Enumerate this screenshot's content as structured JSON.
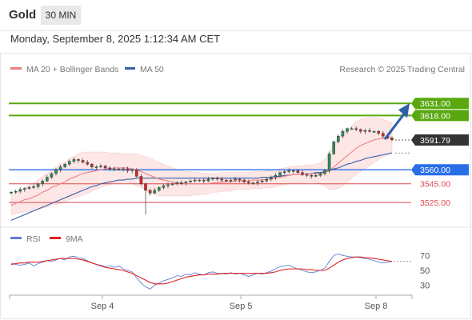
{
  "header": {
    "instrument": "Gold",
    "timeframe": "30 MIN",
    "datetime": "Monday, September 8, 2025 1:12:34 AM CET"
  },
  "legend": {
    "ma20": "MA 20 + Bollinger Bands",
    "ma50": "MA 50",
    "credit": "Research © 2025 Trading Central",
    "rsi": "RSI",
    "rsi_ma": "9MA"
  },
  "colors": {
    "ma20": "#f08080",
    "band": "#fbd9d9",
    "ma50": "#3a5fa8",
    "up": "#2e8b57",
    "down": "#cc2b2b",
    "target": "#5aa810",
    "pivot": "#2a6fe8",
    "support": "#e04a4a",
    "current": "#333333",
    "arrow": "#2d5fa8",
    "rsi": "#5b7fd6",
    "rsi_ma": "#e02020"
  },
  "chart_data": [
    {
      "type": "line",
      "subtype": "candlestick",
      "title": "",
      "x_ticks": [
        "Sep 4",
        "Sep 5",
        "Sep 8"
      ],
      "ylim": [
        3502,
        3656
      ],
      "current_price": 3591.79,
      "levels": [
        {
          "value": 3631.0,
          "label": "3631.00",
          "kind": "target"
        },
        {
          "value": 3618.0,
          "label": "3618.00",
          "kind": "target"
        },
        {
          "value": 3591.79,
          "label": "3591.79",
          "kind": "current"
        },
        {
          "value": 3560.0,
          "label": "3560.00",
          "kind": "pivot"
        },
        {
          "value": 3545.0,
          "label": "3545.00",
          "kind": "support"
        },
        {
          "value": 3525.0,
          "label": "3525.00",
          "kind": "support"
        }
      ],
      "closes": [
        3536,
        3537,
        3539,
        3540,
        3541,
        3542,
        3545,
        3548,
        3552,
        3556,
        3560,
        3563,
        3566,
        3569,
        3571,
        3570,
        3568,
        3566,
        3563,
        3563,
        3564,
        3562,
        3561,
        3561,
        3560,
        3561,
        3559,
        3560,
        3553,
        3545,
        3538,
        3535,
        3538,
        3541,
        3543,
        3544,
        3545,
        3546,
        3546,
        3547,
        3548,
        3549,
        3549,
        3548,
        3550,
        3551,
        3550,
        3549,
        3548,
        3549,
        3550,
        3549,
        3547,
        3546,
        3546,
        3547,
        3548,
        3550,
        3552,
        3554,
        3557,
        3558,
        3559,
        3559,
        3557,
        3555,
        3554,
        3553,
        3554,
        3556,
        3559,
        3577,
        3590,
        3596,
        3601,
        3604,
        3604,
        3603,
        3601,
        3602,
        3601,
        3601,
        3599,
        3596,
        3594,
        3592
      ],
      "series": [
        {
          "name": "MA 20",
          "values": [
            3522,
            3524,
            3526,
            3528,
            3529,
            3531,
            3533,
            3536,
            3538,
            3541,
            3543,
            3545,
            3547,
            3550,
            3552,
            3554,
            3556,
            3557,
            3558,
            3559,
            3560,
            3561,
            3561,
            3562,
            3562,
            3562,
            3562,
            3561,
            3560,
            3558,
            3556,
            3554,
            3552,
            3550,
            3549,
            3548,
            3547,
            3546,
            3546,
            3545,
            3545,
            3545,
            3545,
            3545,
            3545,
            3546,
            3546,
            3547,
            3547,
            3547,
            3548,
            3548,
            3548,
            3548,
            3549,
            3549,
            3549,
            3550,
            3550,
            3551,
            3552,
            3553,
            3554,
            3555,
            3555,
            3555,
            3556,
            3556,
            3556,
            3556,
            3557,
            3559,
            3563,
            3567,
            3571,
            3575,
            3579,
            3583,
            3586,
            3588,
            3590,
            3592,
            3593,
            3594,
            3594,
            3594
          ]
        },
        {
          "name": "MA 50",
          "values": [
            3506,
            3508,
            3510,
            3512,
            3514,
            3516,
            3518,
            3520,
            3522,
            3524,
            3526,
            3528,
            3530,
            3532,
            3534,
            3536,
            3538,
            3540,
            3542,
            3543,
            3545,
            3546,
            3547,
            3548,
            3549,
            3549,
            3550,
            3550,
            3551,
            3551,
            3551,
            3551,
            3551,
            3551,
            3551,
            3551,
            3551,
            3551,
            3551,
            3551,
            3551,
            3551,
            3551,
            3551,
            3551,
            3551,
            3551,
            3551,
            3551,
            3551,
            3551,
            3551,
            3551,
            3551,
            3551,
            3551,
            3552,
            3552,
            3552,
            3553,
            3553,
            3554,
            3554,
            3555,
            3555,
            3555,
            3556,
            3556,
            3557,
            3557,
            3558,
            3559,
            3561,
            3562,
            3564,
            3566,
            3567,
            3569,
            3570,
            3572,
            3573,
            3574,
            3575,
            3576,
            3577,
            3578
          ]
        }
      ],
      "bollinger_width": [
        10,
        11,
        12,
        13,
        14,
        15,
        16,
        17,
        18,
        19,
        20,
        21,
        21,
        22,
        22,
        23,
        23,
        22,
        21,
        20,
        19,
        18,
        17,
        16,
        16,
        15,
        15,
        16,
        17,
        17,
        18,
        18,
        18,
        18,
        17,
        16,
        15,
        14,
        14,
        13,
        13,
        12,
        12,
        11,
        11,
        10,
        10,
        10,
        10,
        10,
        9,
        9,
        9,
        9,
        9,
        9,
        9,
        9,
        9,
        9,
        9,
        9,
        9,
        9,
        9,
        9,
        9,
        9,
        10,
        11,
        14,
        20,
        24,
        27,
        28,
        28,
        28,
        28,
        28,
        27,
        26,
        24,
        22,
        20,
        18,
        16
      ]
    },
    {
      "type": "line",
      "title": "",
      "ylim": [
        20,
        80
      ],
      "y_ticks": [
        70,
        50,
        30
      ],
      "series": [
        {
          "name": "RSI",
          "values": [
            60,
            58,
            57,
            58,
            60,
            56,
            59,
            61,
            63,
            62,
            64,
            66,
            64,
            68,
            69,
            67,
            66,
            63,
            60,
            58,
            57,
            55,
            56,
            54,
            56,
            52,
            50,
            48,
            40,
            33,
            28,
            25,
            30,
            33,
            36,
            38,
            40,
            43,
            42,
            45,
            44,
            47,
            45,
            44,
            47,
            48,
            46,
            46,
            45,
            47,
            45,
            46,
            44,
            42,
            44,
            46,
            45,
            47,
            49,
            52,
            55,
            56,
            57,
            54,
            52,
            50,
            48,
            47,
            48,
            50,
            53,
            62,
            70,
            72,
            70,
            69,
            68,
            68,
            67,
            66,
            65,
            63,
            61,
            60,
            61,
            62
          ]
        },
        {
          "name": "9MA",
          "values": [
            58,
            59,
            60,
            60,
            61,
            61,
            61,
            62,
            63,
            64,
            65,
            66,
            66,
            66,
            66,
            65,
            64,
            62,
            60,
            58,
            56,
            54,
            53,
            52,
            51,
            50,
            48,
            46,
            43,
            40,
            37,
            34,
            32,
            32,
            32,
            33,
            35,
            37,
            39,
            41,
            42,
            43,
            44,
            44,
            45,
            45,
            45,
            46,
            46,
            46,
            46,
            46,
            46,
            46,
            46,
            46,
            46,
            46,
            47,
            48,
            50,
            51,
            52,
            52,
            52,
            52,
            51,
            51,
            50,
            50,
            50,
            53,
            57,
            61,
            64,
            66,
            67,
            68,
            68,
            67,
            67,
            66,
            65,
            64,
            63,
            62
          ]
        }
      ]
    }
  ]
}
